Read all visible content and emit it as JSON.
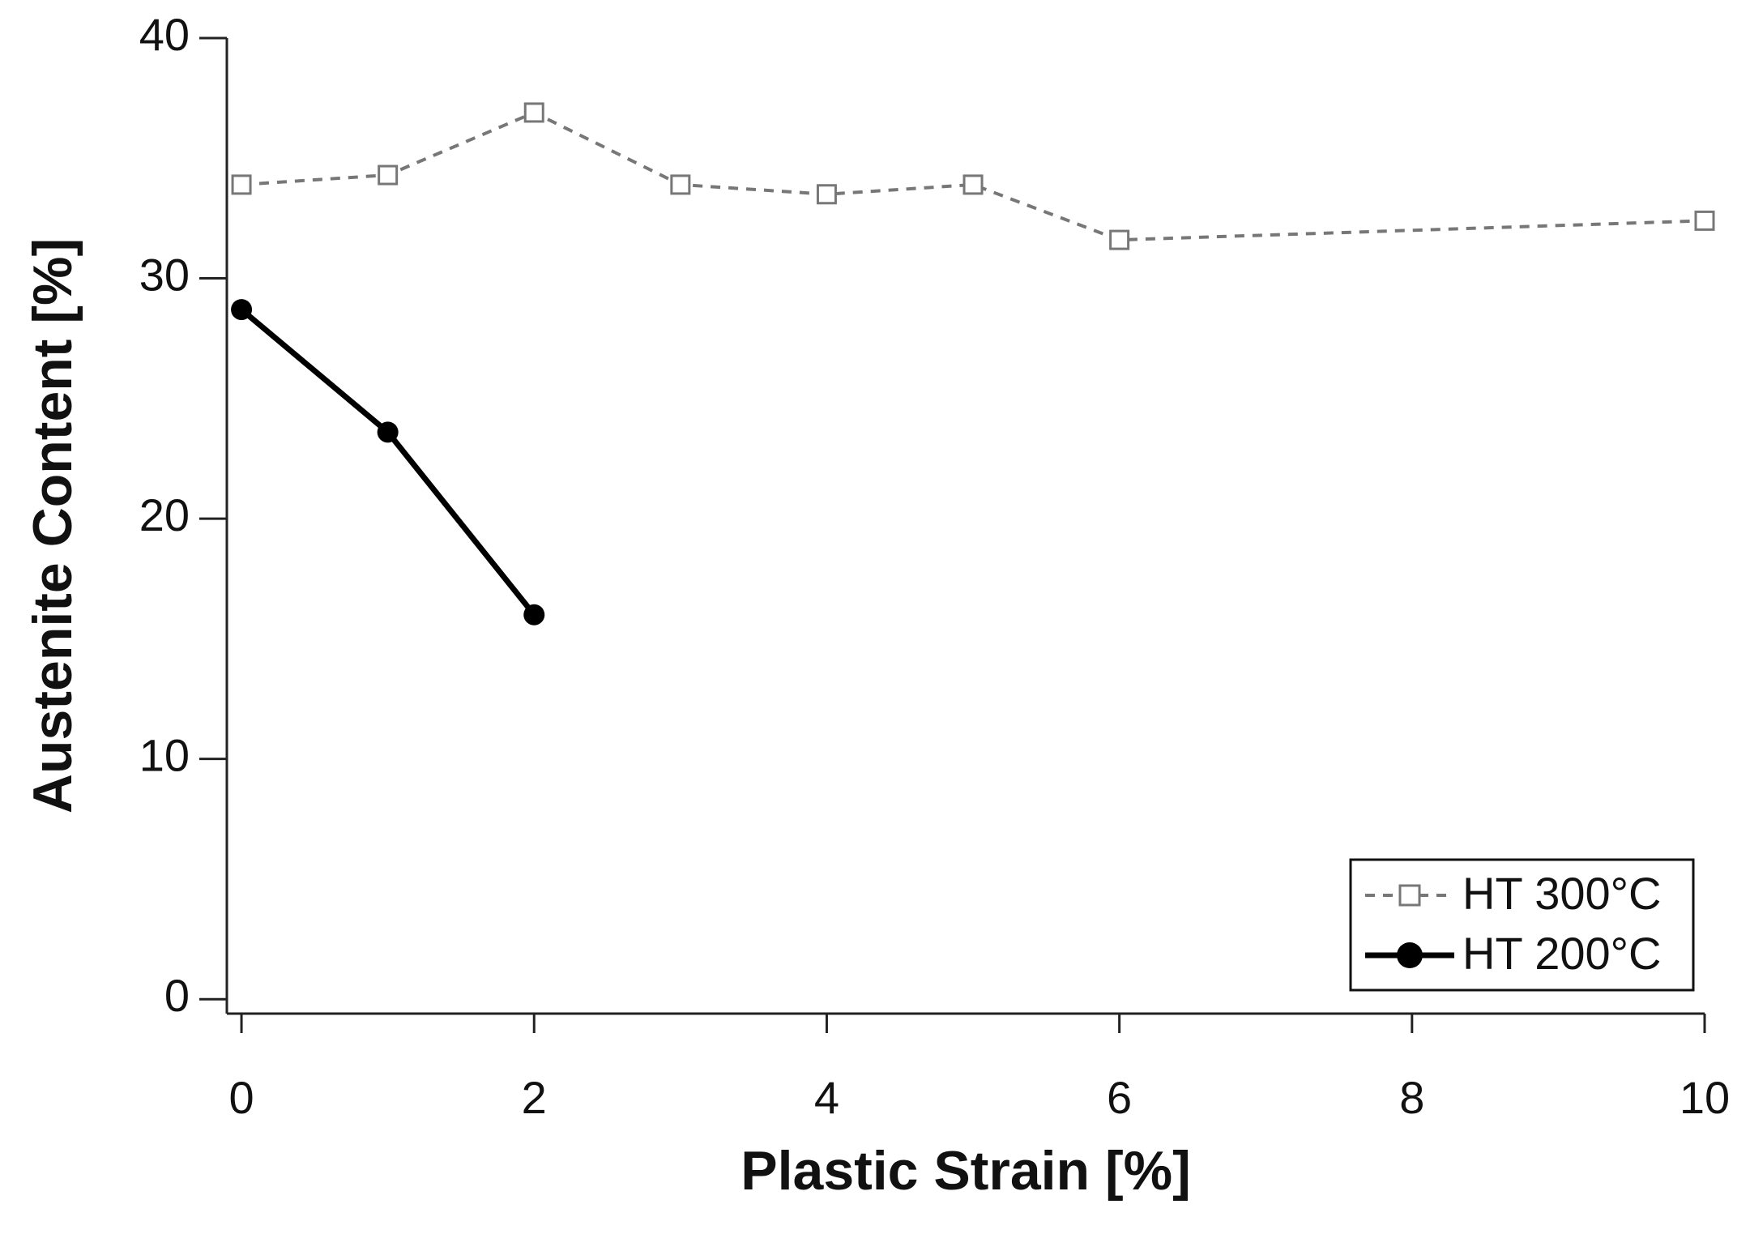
{
  "chart_data": {
    "type": "line",
    "xlabel": "Plastic Strain [%]",
    "ylabel": "Austenite Content [%]",
    "xlim": [
      -0.1,
      10
    ],
    "xticks": [
      0,
      2,
      4,
      6,
      8,
      10
    ],
    "ylim": [
      -0.6,
      40
    ],
    "yticks": [
      0,
      10,
      20,
      30,
      40
    ],
    "legend": "lower right",
    "series": [
      {
        "name": "HT 300°C",
        "color": "#777777",
        "linestyle": "dashed",
        "marker": "square",
        "x": [
          0,
          1,
          2,
          3,
          4,
          5,
          6,
          10
        ],
        "values": [
          33.9,
          34.3,
          36.9,
          33.9,
          33.5,
          33.9,
          31.6,
          32.4
        ]
      },
      {
        "name": "HT 200°C",
        "color": "#000000",
        "linestyle": "solid",
        "marker": "circle",
        "x": [
          0,
          1,
          2
        ],
        "values": [
          28.7,
          23.6,
          16.0
        ]
      }
    ]
  }
}
